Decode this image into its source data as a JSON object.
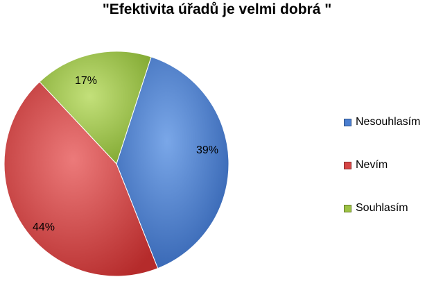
{
  "chart_data": {
    "type": "pie",
    "title": "\"Efektivita úřadů je velmi dobrá \"",
    "categories": [
      "Nesouhlasím",
      "Nevím",
      "Souhlasím"
    ],
    "values": [
      39,
      44,
      17
    ],
    "labels": [
      "39%",
      "44%",
      "17%"
    ],
    "colors": [
      "#4a7ed0",
      "#d64545",
      "#9dc244"
    ],
    "legend": "right"
  }
}
